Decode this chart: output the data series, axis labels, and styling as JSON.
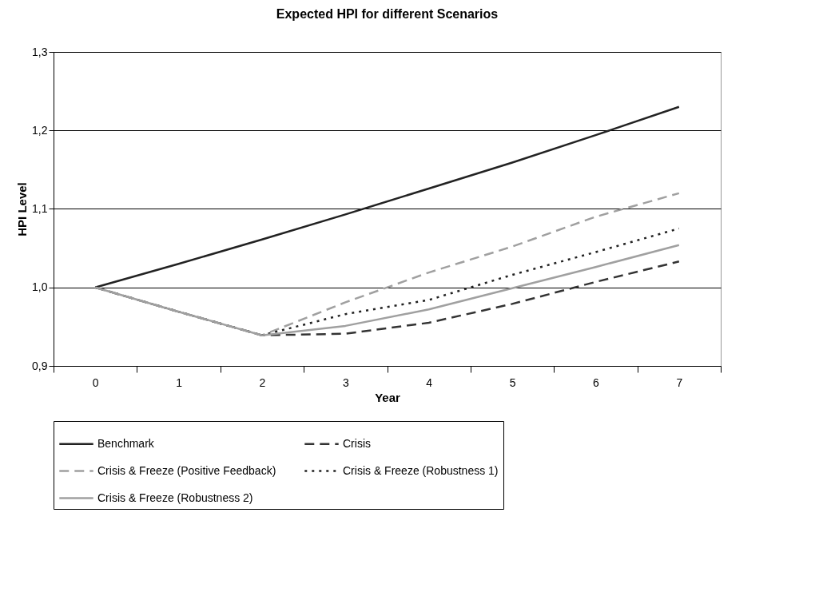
{
  "chart_data": {
    "type": "line",
    "title": "Expected HPI for different Scenarios",
    "xlabel": "Year",
    "ylabel": "HPI Level",
    "categories": [
      "0",
      "1",
      "2",
      "3",
      "4",
      "5",
      "6",
      "7"
    ],
    "series": [
      {
        "name": "Benchmark",
        "color": "#222222",
        "line_style": "solid",
        "values": [
          1.0,
          1.03,
          1.061,
          1.093,
          1.126,
          1.159,
          1.194,
          1.23
        ]
      },
      {
        "name": "Crisis",
        "color": "#333333",
        "line_style": "dashed",
        "values": [
          1.0,
          0.969,
          0.939,
          0.941,
          0.955,
          0.979,
          1.007,
          1.033
        ]
      },
      {
        "name": "Crisis & Freeze (Positive Feedback)",
        "color": "#a0a0a0",
        "line_style": "dashed",
        "values": [
          1.0,
          0.969,
          0.939,
          0.981,
          1.019,
          1.052,
          1.09,
          1.12
        ]
      },
      {
        "name": "Crisis & Freeze (Robustness 1)",
        "color": "#222222",
        "line_style": "dotted",
        "values": [
          1.0,
          0.969,
          0.939,
          0.966,
          0.984,
          1.016,
          1.045,
          1.075
        ]
      },
      {
        "name": "Crisis & Freeze (Robustness 2)",
        "color": "#a0a0a0",
        "line_style": "solid",
        "values": [
          1.0,
          0.969,
          0.939,
          0.951,
          0.972,
          0.999,
          1.026,
          1.054
        ]
      }
    ],
    "ylim": [
      0.9,
      1.3
    ],
    "yticks": [
      {
        "value": 0.9,
        "label": "0,9"
      },
      {
        "value": 1.0,
        "label": "1,0"
      },
      {
        "value": 1.1,
        "label": "1,1"
      },
      {
        "value": 1.2,
        "label": "1,2"
      },
      {
        "value": 1.3,
        "label": "1,3"
      }
    ],
    "grid": "y",
    "legend": "bottom",
    "marker": "none"
  }
}
